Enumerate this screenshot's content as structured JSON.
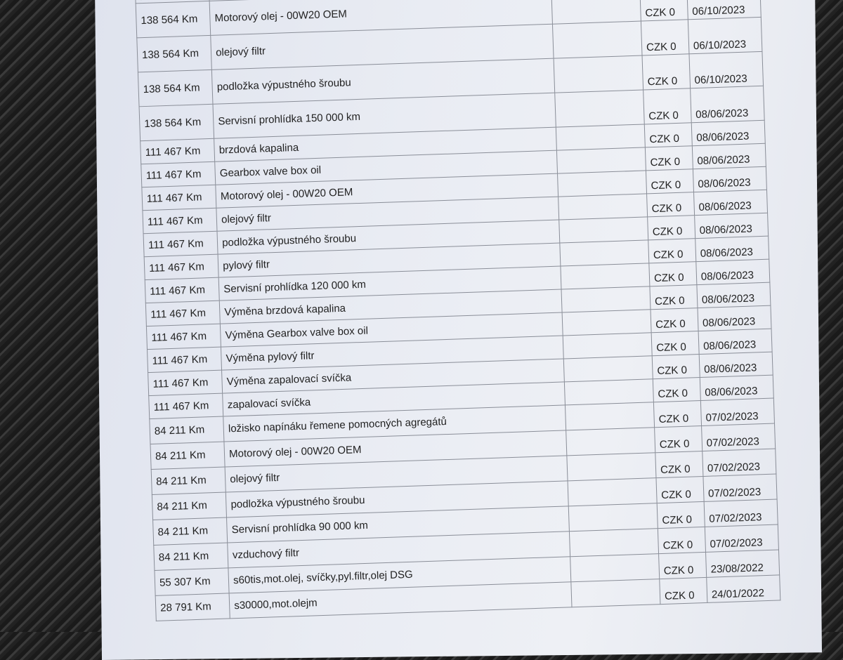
{
  "partial_row": {
    "km": "Km",
    "price": "CZ"
  },
  "rows": [
    {
      "km": "138 564 Km",
      "desc": "Motorový olej - 00W20 OEM",
      "price": "CZK 0",
      "date": "06/10/2023"
    },
    {
      "km": "138 564 Km",
      "desc": "olejový filtr",
      "price": "CZK 0",
      "date": "06/10/2023"
    },
    {
      "km": "138 564 Km",
      "desc": "podložka výpustného šroubu",
      "price": "CZK 0",
      "date": "06/10/2023"
    },
    {
      "km": "138 564 Km",
      "desc": "Servisní prohlídka 150 000 km",
      "price": "CZK 0",
      "date": "08/06/2023"
    },
    {
      "km": "111 467 Km",
      "desc": "brzdová kapalina",
      "price": "CZK 0",
      "date": "08/06/2023"
    },
    {
      "km": "111 467 Km",
      "desc": "Gearbox valve box oil",
      "price": "CZK 0",
      "date": "08/06/2023"
    },
    {
      "km": "111 467 Km",
      "desc": "Motorový olej - 00W20 OEM",
      "price": "CZK 0",
      "date": "08/06/2023"
    },
    {
      "km": "111 467 Km",
      "desc": "olejový filtr",
      "price": "CZK 0",
      "date": "08/06/2023"
    },
    {
      "km": "111 467 Km",
      "desc": "podložka výpustného šroubu",
      "price": "CZK 0",
      "date": "08/06/2023"
    },
    {
      "km": "111 467 Km",
      "desc": "pylový filtr",
      "price": "CZK 0",
      "date": "08/06/2023"
    },
    {
      "km": "111 467 Km",
      "desc": "Servisní prohlídka 120 000 km",
      "price": "CZK 0",
      "date": "08/06/2023"
    },
    {
      "km": "111 467 Km",
      "desc": "Výměna brzdová kapalina",
      "price": "CZK 0",
      "date": "08/06/2023"
    },
    {
      "km": "111 467 Km",
      "desc": "Výměna Gearbox valve box oil",
      "price": "CZK 0",
      "date": "08/06/2023"
    },
    {
      "km": "111 467 Km",
      "desc": "Výměna pylový filtr",
      "price": "CZK 0",
      "date": "08/06/2023"
    },
    {
      "km": "111 467 Km",
      "desc": "Výměna zapalovací svíčka",
      "price": "CZK 0",
      "date": "08/06/2023"
    },
    {
      "km": "111 467 Km",
      "desc": "zapalovací svíčka",
      "price": "CZK 0",
      "date": "08/06/2023"
    },
    {
      "km": "84 211 Km",
      "desc": "ložisko napínáku řemene pomocných agregátů",
      "price": "CZK 0",
      "date": "07/02/2023"
    },
    {
      "km": "84 211 Km",
      "desc": "Motorový olej - 00W20 OEM",
      "price": "CZK 0",
      "date": "07/02/2023"
    },
    {
      "km": "84 211 Km",
      "desc": "olejový filtr",
      "price": "CZK 0",
      "date": "07/02/2023"
    },
    {
      "km": "84 211 Km",
      "desc": "podložka výpustného šroubu",
      "price": "CZK 0",
      "date": "07/02/2023"
    },
    {
      "km": "84 211 Km",
      "desc": "Servisní prohlídka 90 000 km",
      "price": "CZK 0",
      "date": "07/02/2023"
    },
    {
      "km": "84 211 Km",
      "desc": "vzduchový filtr",
      "price": "CZK 0",
      "date": "07/02/2023"
    },
    {
      "km": "55 307 Km",
      "desc": "s60tis,mot.olej, svíčky,pyl.filtr,olej DSG",
      "price": "CZK 0",
      "date": "23/08/2022"
    },
    {
      "km": "28 791 Km",
      "desc": "s30000,mot.olejm",
      "price": "CZK 0",
      "date": "24/01/2022"
    }
  ]
}
